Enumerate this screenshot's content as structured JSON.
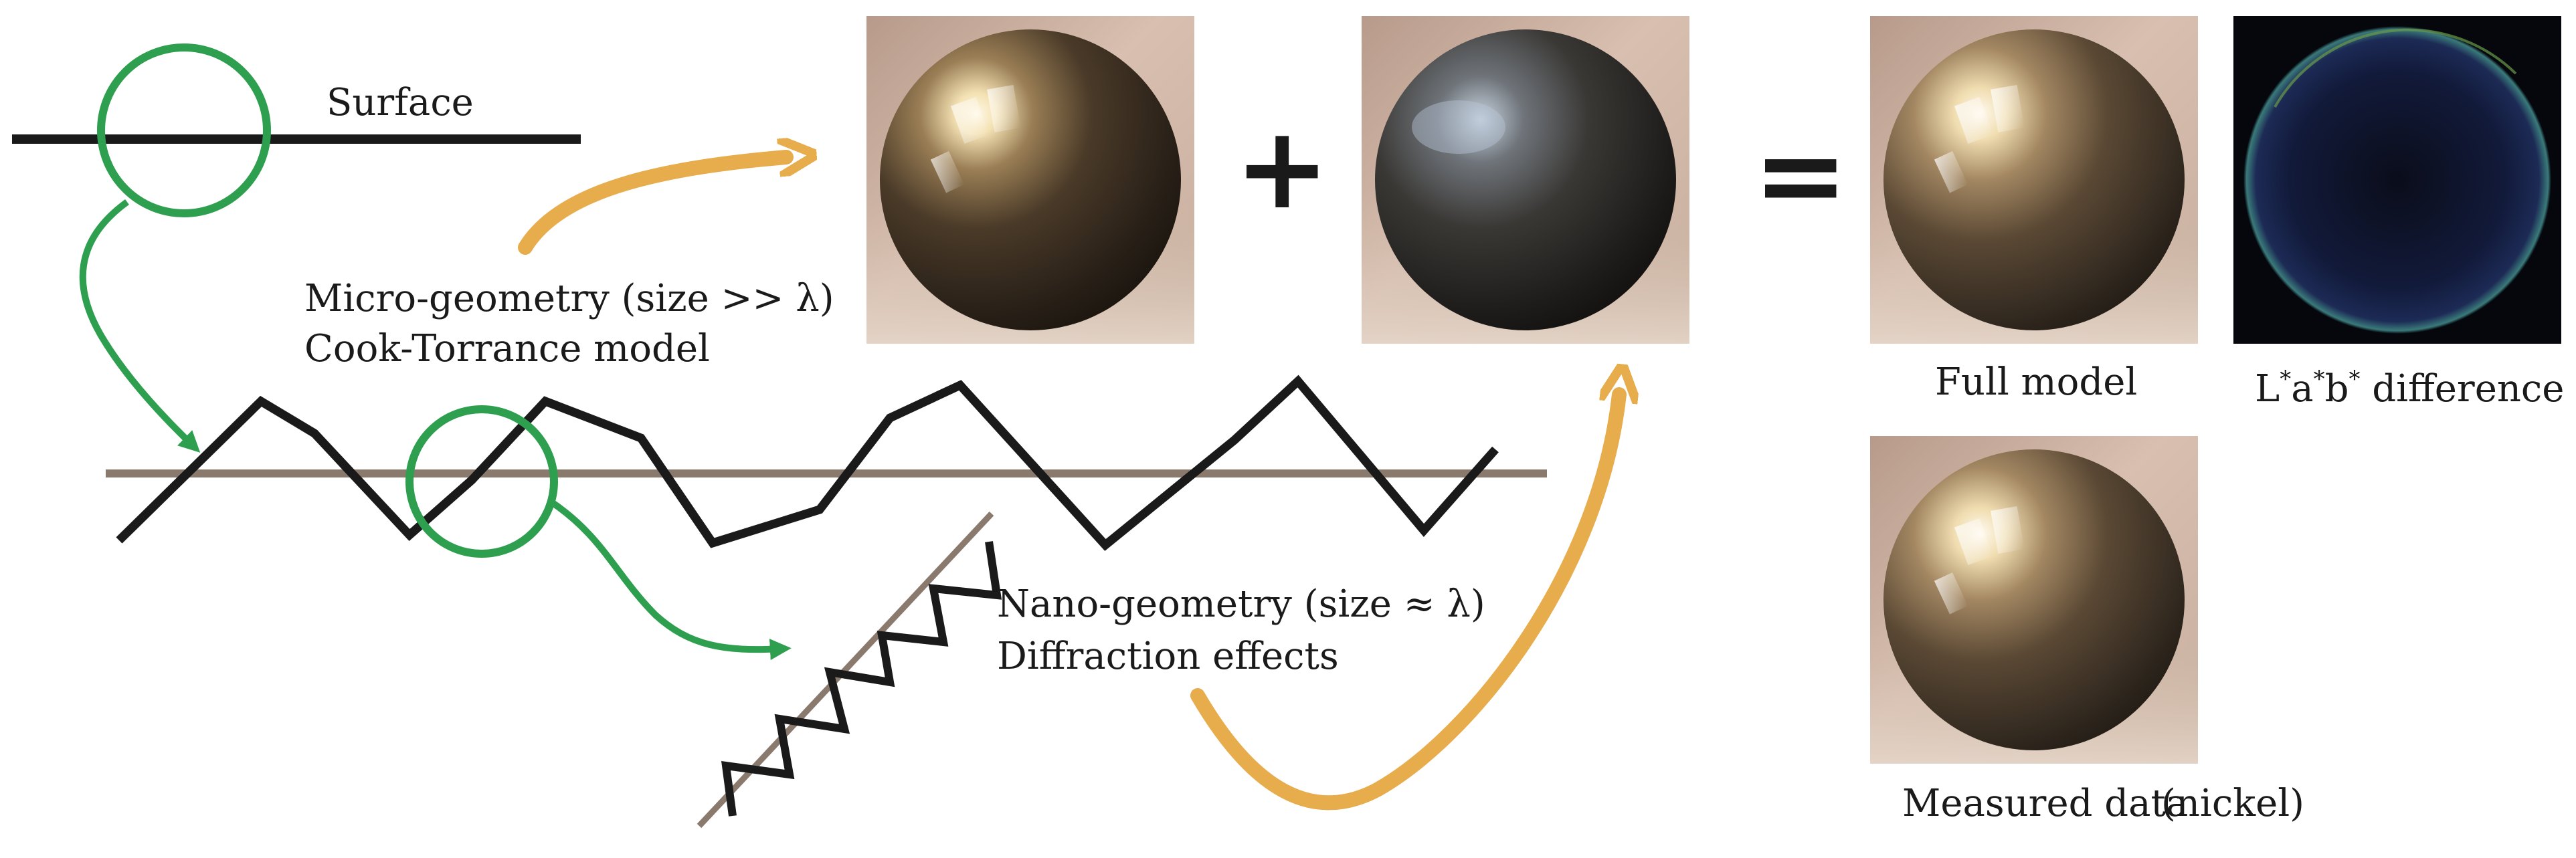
{
  "labels": {
    "surface": "Surface",
    "micro_line1": "Micro-geometry (size >> λ)",
    "micro_line2": "Cook-Torrance model",
    "nano_line1": "Nano-geometry (size ≈ λ)",
    "nano_line2": "Diffraction effects",
    "full_model": "Full model",
    "difference_L": "L",
    "difference_a": "a",
    "difference_b": "b",
    "difference_star": "*",
    "difference_rest": " difference",
    "measured_data": "Measured data",
    "nickel": "(nickel)",
    "plus": "+",
    "equals": "="
  },
  "colors": {
    "stroke_black": "#1a1a1a",
    "zoom_green": "#2e9e4f",
    "flow_orange": "#e7ac4b",
    "mean_line": "#8a7a6e",
    "difference_bg": "#05070d"
  },
  "images": {
    "cook_torrance_sphere": "cook-torrance-render",
    "diffraction_sphere": "diffraction-render",
    "full_model_sphere": "full-model-render",
    "difference_map": "lab-difference-map",
    "measured_sphere": "measured-nickel-render"
  }
}
